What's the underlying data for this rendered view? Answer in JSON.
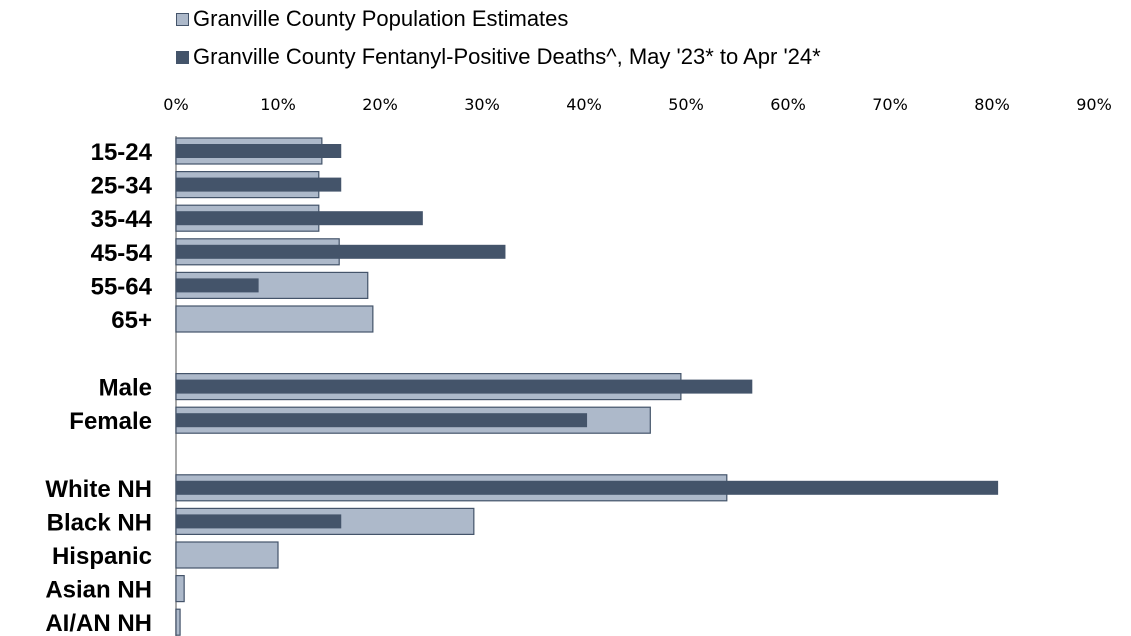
{
  "chart_data": {
    "type": "bar",
    "orientation": "horizontal",
    "title": "",
    "xlabel": "",
    "ylabel": "",
    "xlim": [
      0,
      90
    ],
    "x_ticks": [
      "0%",
      "10%",
      "20%",
      "30%",
      "40%",
      "50%",
      "60%",
      "70%",
      "80%",
      "90%"
    ],
    "x_tick_values": [
      0,
      10,
      20,
      30,
      40,
      50,
      60,
      70,
      80,
      90
    ],
    "x_axis_position": "top",
    "grid": false,
    "legend_position": "top-left",
    "categories": [
      "15-24",
      "25-34",
      "35-44",
      "45-54",
      "55-64",
      "65+",
      "Male",
      "Female",
      "White NH",
      "Black NH",
      "Hispanic",
      "Asian NH",
      "AI/AN NH"
    ],
    "groups": [
      [
        "15-24",
        "25-34",
        "35-44",
        "45-54",
        "55-64",
        "65+"
      ],
      [
        "Male",
        "Female"
      ],
      [
        "White NH",
        "Black NH",
        "Hispanic",
        "Asian NH",
        "AI/AN NH"
      ]
    ],
    "series": [
      {
        "name": "Granville County Population Estimates",
        "color": "#adb9ca",
        "values": [
          14.3,
          14.0,
          14.0,
          16.0,
          18.8,
          19.3,
          49.5,
          46.5,
          54.0,
          29.2,
          10.0,
          0.8,
          0.4
        ]
      },
      {
        "name": "Granville County Fentanyl-Positive Deaths^, May '23* to Apr '24*",
        "color": "#44546a",
        "values": [
          16.2,
          16.2,
          24.2,
          32.3,
          8.1,
          0,
          56.5,
          40.3,
          80.6,
          16.2,
          0,
          0,
          0
        ]
      }
    ]
  }
}
